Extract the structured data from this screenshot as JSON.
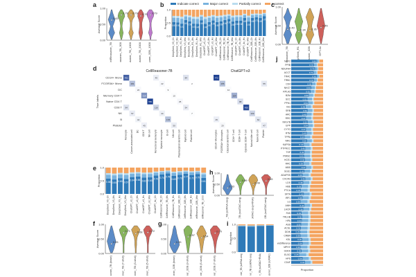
{
  "panels": {
    "a": "a",
    "b": "b",
    "c": "c",
    "d": "d",
    "e": "e",
    "f": "f",
    "g": "g",
    "h": "h",
    "i": "i",
    "j": "j"
  },
  "colors": {
    "blue": "#2f7ab8",
    "lightblue": "#79b3de",
    "paleblue": "#b9dcef",
    "orange": "#f4a460",
    "violins": [
      "#4a7fc2",
      "#7cae4c",
      "#cc9a45",
      "#c94f4a",
      "#b86cc8"
    ]
  },
  "legend_b": [
    "Indicate correct",
    "Major correct",
    "Partially correct",
    "Incorrect"
  ],
  "panel_a": {
    "ylabel": "Average Score",
    "labels": [
      "CellReasoner_7B",
      "CellReasoner_7B_300",
      "CellReasoner_7B_1000",
      "CellReasoner_7B_2000",
      "CellReasoner_32B_1000"
    ],
    "values": [
      "0.63",
      "0.79",
      "0.79",
      "0.76",
      "0.79"
    ]
  },
  "panel_b": {
    "ylabel": "Proportion",
    "labels": [
      "DeepSeek_V3_Ch",
      "DeepSeek_V3_Ms",
      "DeepSeek_V3_Hs",
      "DeepSeek_V3_Mm",
      "DeepSeek_R1_Ch",
      "DeepSeek_R1_Ms",
      "DeepSeek_R1_Hs",
      "DeepSeek_R1_Mm",
      "ChatGPT_o3_Ch",
      "ChatGPT_o3_Ms",
      "ChatGPT_o3_Hs",
      "ChatGPT_o3_Mm",
      "CellReasoner_7B_Ch",
      "CellReasoner_7B_Ms",
      "CellReasoner_7B_Hs",
      "CellReasoner_7B_Mm",
      "ChatGPT_4o_Ch",
      "ChatGPT_4o_Ms",
      "ChatGPT_4o_Hs",
      "ChatGPT_4o_Mm",
      "CellReasoner_32B_Ch",
      "CellReasoner_32B_Ms",
      "CellReasoner_32B_Hs",
      "CellReasoner_32B_Mm"
    ],
    "values": [
      "0.53",
      "0.52",
      "0.47",
      "0.61",
      "0.56",
      "0.47",
      "0.46",
      "0.60",
      "0.46",
      "0.53",
      "0.59",
      "0.53",
      "0.56",
      "0.61",
      "0.65",
      "0.55",
      "0.58",
      "0.58",
      "0.69",
      "0.55",
      "0.69",
      "0.71",
      "0.69",
      "0.75"
    ]
  },
  "panel_c": {
    "ylabel": "Average Score",
    "labels": [
      "CellReasoner_7B",
      "DeepSeek_R1",
      "CellReasoner_32B",
      "GPT-4o"
    ],
    "values": [
      "0.40",
      "0.34",
      "0.36",
      "0.45"
    ]
  },
  "panel_d": {
    "left_title": "CellReasoner-7B",
    "right_title": "ChatGPT-o3",
    "ylabel": "True labels",
    "rows": [
      "CD14+ Mono",
      "FCGR3A+ Mono",
      "DC",
      "Memory CD4 T",
      "Naive CD4 T",
      "CD8 T",
      "NK",
      "B",
      "Platelet"
    ],
    "cols": [
      "Monocyte",
      "Cancer-associated cell",
      "DC",
      "CD4 T",
      "NK cell",
      "Monoclonal memory B",
      "Myeloid monocyte",
      "B cell",
      "NM cell",
      "Plasmacytoid dendritic cell",
      "Myeloid cell",
      "Platelet cell"
    ],
    "right_cols": [
      "CD14+ Monocytes",
      "FCGR3A+ Monocytes",
      "Classical dendritic cell",
      "CD4+ T cell",
      "CD8+ T cell",
      "Cytotoxic CD8+ T cell",
      "Natural killer cell",
      "Naive B cell",
      "Platelet"
    ]
  },
  "panel_e": {
    "ylabel": "Proportion",
    "labels": [
      "DeepSeek_V3_Ch",
      "DeepSeek_V3_Ms",
      "DeepSeek_V3_Hs",
      "DeepSeek_V3_Mm",
      "ChatGPT_o3_Ch",
      "ChatGPT_o3_Ms",
      "ChatGPT_o3_Hs",
      "ChatGPT_o3_Mm",
      "ChatGPT_4o_Ch",
      "CellReasoner_7B_Ch",
      "CellReasoner_7B_Ms",
      "CellReasoner_7B_Hs",
      "CellReasoner_32B_Ch",
      "CellReasoner_32B_Ms",
      "CellReasoner_32B_Hs",
      "CellReasoner_32B_Mm",
      "CellReasoner_7B_1000"
    ],
    "values": [
      "0.58",
      "0.55",
      "0.60",
      "0.57",
      "0.64",
      "0.66",
      "0.62",
      "0.63",
      "0.70",
      "0.74",
      "0.78",
      "0.69",
      "0.73",
      "0.77",
      "0.72",
      "0.75",
      "0.61"
    ]
  },
  "panel_f": {
    "ylabel": "Average Score",
    "labels": [
      "CellReasoner_7B (base)",
      "CellReasoner_7B (7-shot)",
      "CellReasoner_7B (3-shot)",
      "CellReasoner_7B (5-shot)"
    ],
    "values": [
      "0.33",
      "0.71",
      "0.68",
      "0.72"
    ]
  },
  "panel_g": {
    "labels": [
      "CellReasoner_32B (base)",
      "CellReasoner_32B (3-shot)",
      "CellReasoner_32B (5-shot)",
      "CellReasoner_32B (7-shot)"
    ],
    "values": [
      "0.33",
      "0.57",
      "0.54",
      "0.70"
    ]
  },
  "panel_h": {
    "ylabel": "Average Score",
    "labels": [
      "CellReasoner_7B (scRNA-seq)",
      "CellReasoner_7B (scATAC-seq)",
      "CellReasoner_7B (scATAC-seq+RNA)",
      "CellReasoner_32B (scATAC-seq)"
    ],
    "values": [
      "0.33",
      "0.59",
      "0.49",
      "0.65"
    ]
  },
  "panel_i": {
    "ylabel": "Proportion",
    "labels": [
      "CellReasoner_7B (scRNA-seq)",
      "CellReasoner_7B (scATAC-seq)",
      "CellReasoner_7B (scATAC+RNA)",
      "CellReasoner_32B (scATAC)"
    ]
  },
  "panel_j": {
    "xlabel": "Proportion",
    "rows": [
      "NCF2",
      "PPIB",
      "NDUFA4",
      "ACCT",
      "TRAC",
      "TRBC",
      "CD4",
      "NKG7",
      "RPLA3",
      "B2M",
      "SCC",
      "PFN1",
      "ISG",
      "SRB",
      "ARC",
      "RRC",
      "NKG7B",
      "EPP",
      "CYTO",
      "RTM",
      "TPPA",
      "NRG",
      "KAPSA",
      "PTPRCC",
      "TSP",
      "PIMSC",
      "HCE1",
      "RRC",
      "MBS",
      "SGS1",
      "ADAPSS",
      "CXCR3",
      "LDS",
      "HBE",
      "PTCA",
      "SFTA",
      "IRF1",
      "LG",
      "AMH",
      "LHCR",
      "FAS",
      "TRLHB",
      "HPA",
      "ASS",
      "ACSL",
      "DDIK",
      "CRBR",
      "KSL",
      "ShareDifference",
      "MPHY",
      "GSKA",
      "ELSO",
      "HPS",
      "CD4F"
    ],
    "values": [
      "0.80",
      "0.72",
      "0.75",
      "0.71",
      "0.81",
      "0.72",
      "0.66",
      "0.63",
      "0.61",
      "0.56",
      "0.51",
      "0.54",
      "0.46",
      "0.52",
      "0.49",
      "0.47",
      "0.52",
      "0.54",
      "0.47",
      "0.49",
      "0.43",
      "0.50",
      "0.40",
      "0.45",
      "0.42",
      "0.41",
      "0.44",
      "0.39",
      "0.47",
      "0.42",
      "0.36",
      "0.45",
      "0.38",
      "0.33",
      "0.31",
      "0.40",
      "0.36",
      "0.30",
      "0.42",
      "0.38",
      "0.33",
      "0.35",
      "0.34",
      "0.32",
      "0.31",
      "0.29",
      "0.30",
      "0.35",
      "0.36",
      "0.30",
      "0.33",
      "0.25",
      "0.36",
      "0.44"
    ]
  }
}
